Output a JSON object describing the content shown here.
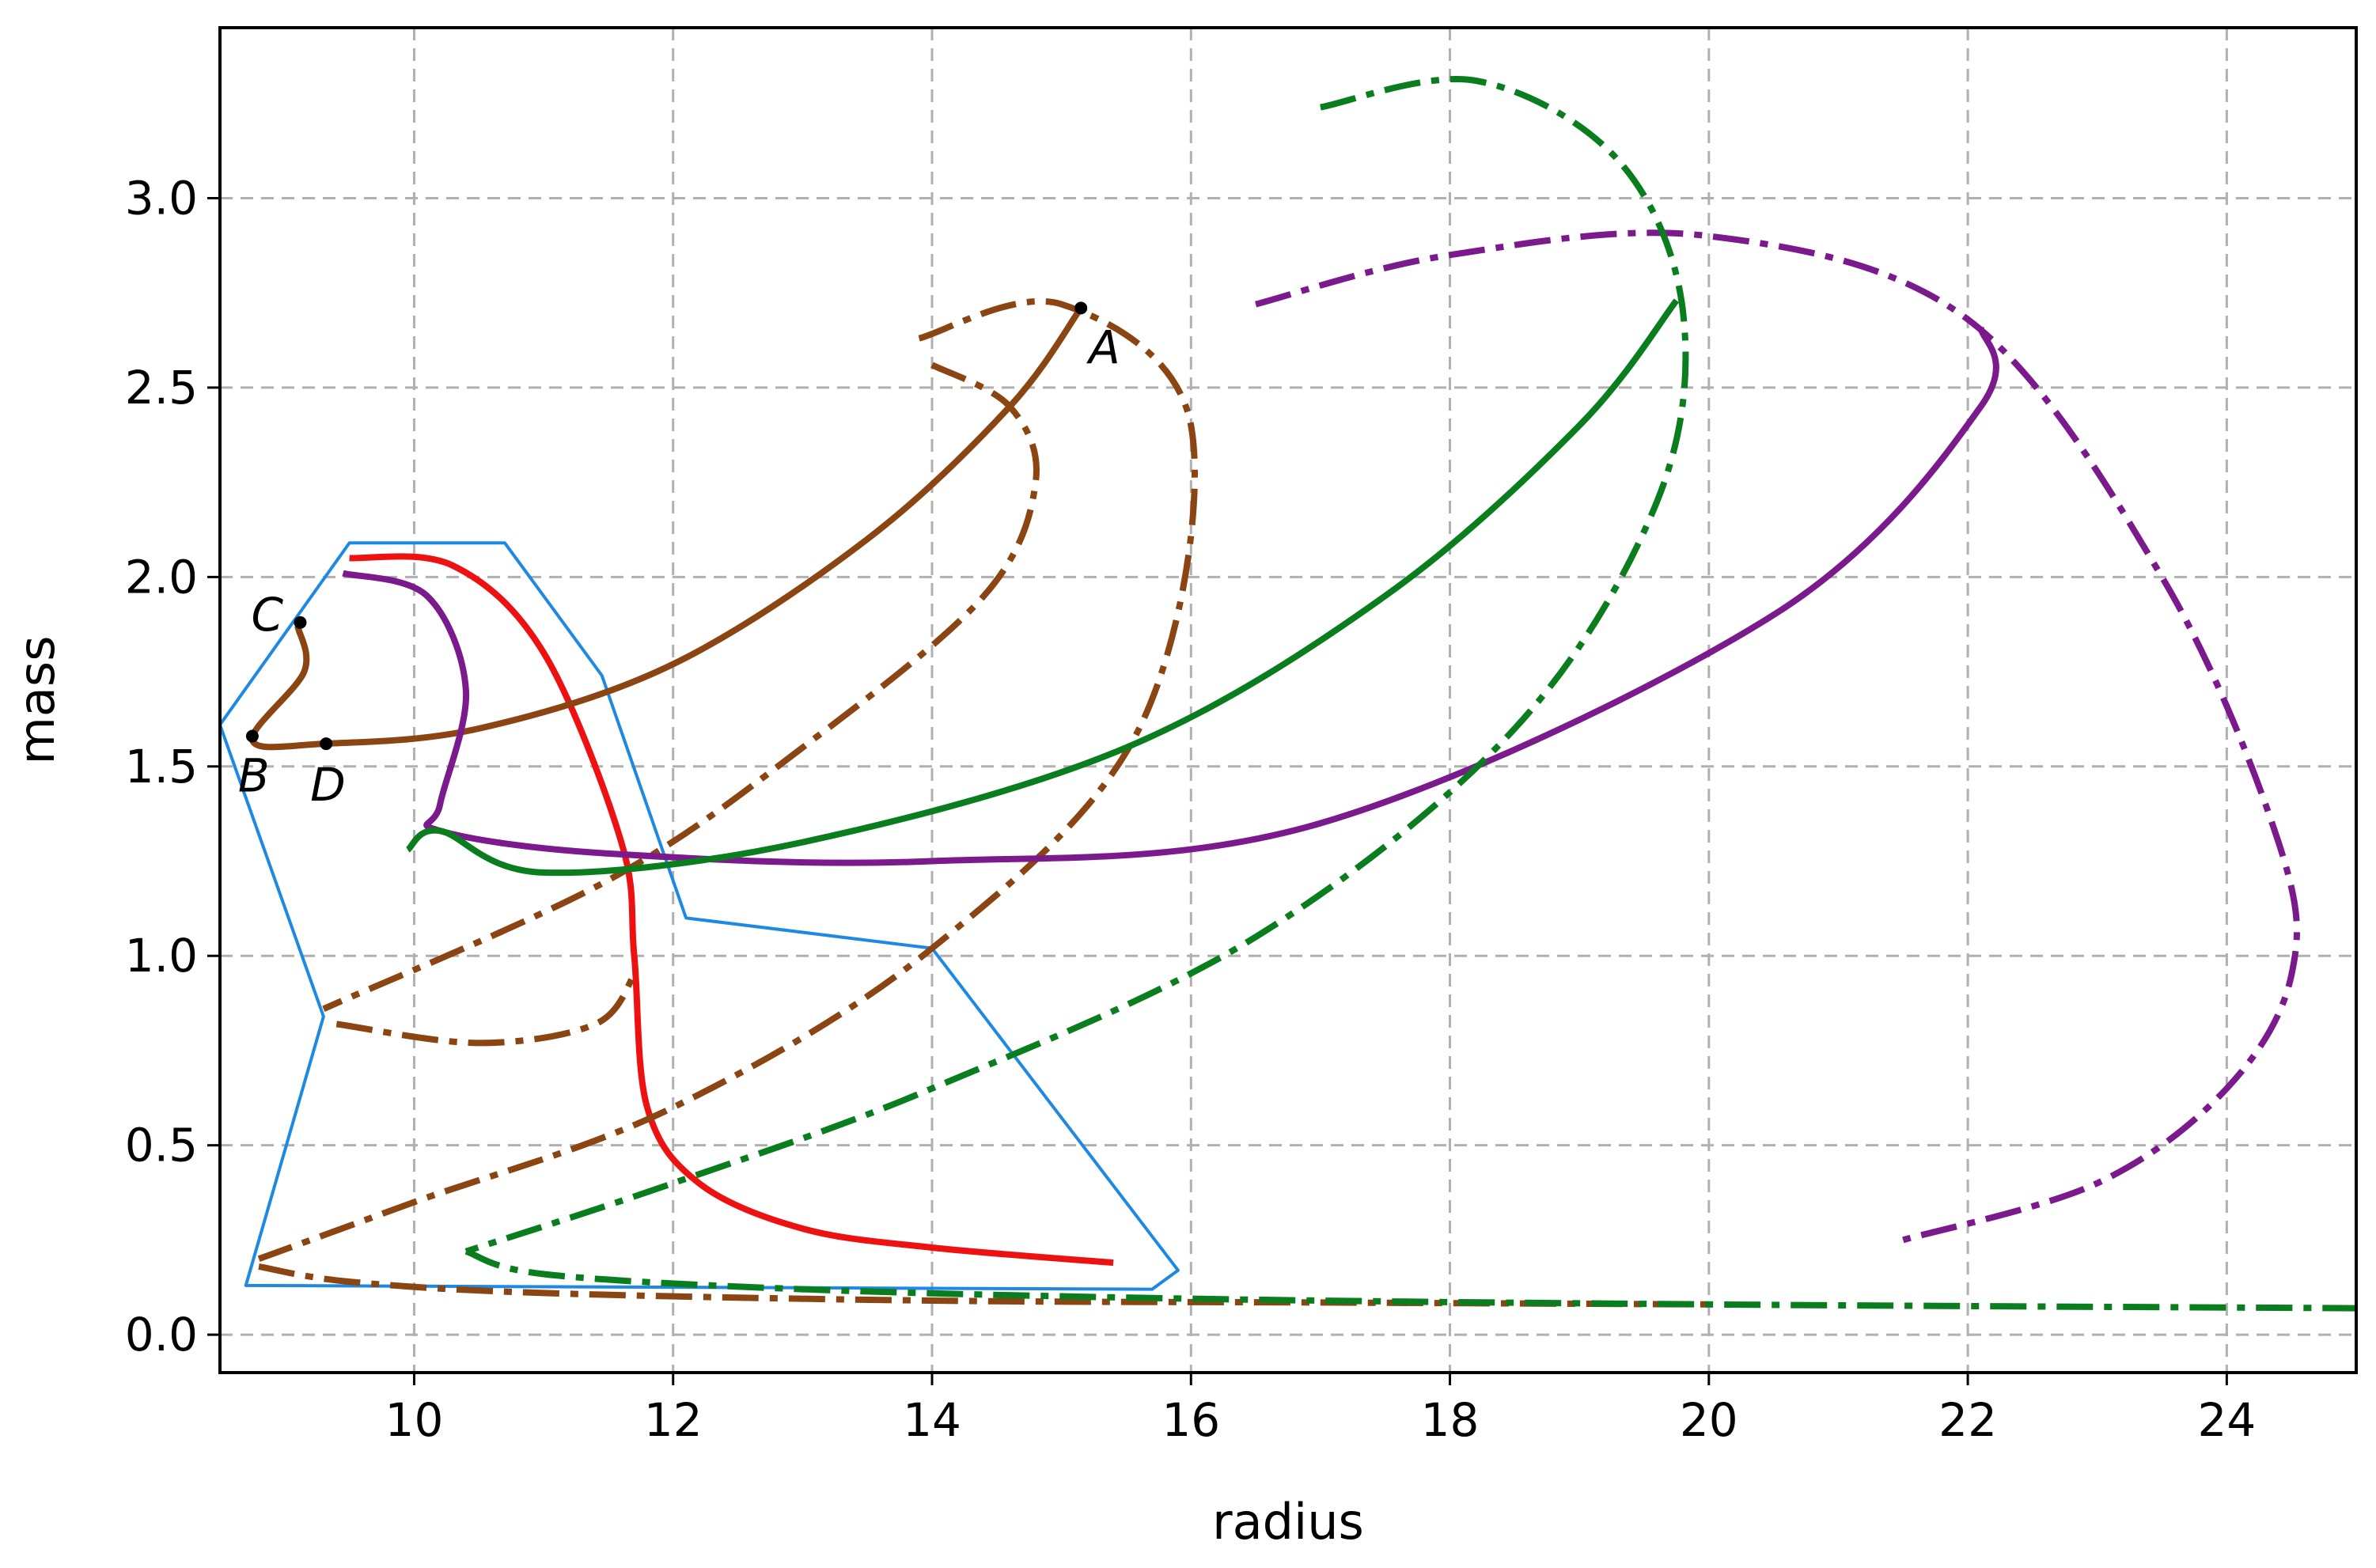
{
  "chart_data": {
    "type": "line",
    "title": "",
    "xlabel": "radius",
    "ylabel": "mass",
    "xlim": [
      8.5,
      25.0
    ],
    "ylim": [
      -0.1,
      3.45
    ],
    "xticks": [
      10,
      12,
      14,
      16,
      18,
      20,
      22,
      24
    ],
    "yticks": [
      0.0,
      0.5,
      1.0,
      1.5,
      2.0,
      2.5,
      3.0
    ],
    "xtick_labels": [
      "10",
      "12",
      "14",
      "16",
      "18",
      "20",
      "22",
      "24"
    ],
    "ytick_labels": [
      "0.0",
      "0.5",
      "1.0",
      "1.5",
      "2.0",
      "2.5",
      "3.0"
    ],
    "grid": true,
    "legend": "none",
    "series": [
      {
        "color": "#1e88e5",
        "style": "solid",
        "closed": true,
        "x": [
          9.5,
          10.7,
          11.45,
          12.1,
          14.0,
          15.9,
          15.7,
          8.7,
          9.3,
          8.5
        ],
        "y": [
          2.09,
          2.09,
          1.74,
          1.1,
          1.02,
          0.17,
          0.12,
          0.13,
          0.84,
          1.61
        ]
      },
      {
        "color": "#ee1111",
        "style": "solid",
        "x": [
          9.5,
          10.3,
          11.0,
          11.6,
          11.7,
          11.8,
          12.2,
          13.0,
          14.0,
          15.4
        ],
        "y": [
          2.05,
          2.03,
          1.8,
          1.3,
          1.0,
          0.6,
          0.4,
          0.28,
          0.23,
          0.19
        ]
      },
      {
        "color": "#8b4513",
        "style": "solid",
        "x": [
          9.1,
          9.15,
          8.75,
          9.3,
          10.5,
          12.0,
          13.5,
          14.6,
          15.15
        ],
        "y": [
          1.87,
          1.75,
          1.57,
          1.56,
          1.6,
          1.77,
          2.1,
          2.45,
          2.71
        ]
      },
      {
        "color": "#8b4513",
        "style": "dashdot",
        "x": [
          14.0,
          14.6,
          14.8,
          14.4,
          13.0,
          11.5,
          9.3
        ],
        "y": [
          2.56,
          2.45,
          2.25,
          1.95,
          1.55,
          1.2,
          0.86
        ]
      },
      {
        "color": "#8b4513",
        "style": "dashdot",
        "x": [
          13.9,
          15.0,
          16.0,
          15.6,
          14.0,
          12.0,
          10.0,
          8.8
        ],
        "y": [
          2.63,
          2.72,
          2.4,
          1.6,
          1.02,
          0.6,
          0.35,
          0.2
        ]
      },
      {
        "color": "#8b4513",
        "style": "dashdot",
        "x": [
          9.4,
          10.5,
          11.4,
          11.7
        ],
        "y": [
          0.82,
          0.77,
          0.82,
          0.95
        ]
      },
      {
        "color": "#8b4513",
        "style": "dashdot",
        "x": [
          8.8,
          9.5,
          11.0,
          14.0,
          17.0,
          20.0
        ],
        "y": [
          0.18,
          0.14,
          0.11,
          0.09,
          0.085,
          0.08
        ]
      },
      {
        "color": "#7b1a8c",
        "style": "solid",
        "x": [
          9.45,
          10.1,
          10.4,
          10.2,
          10.2,
          11.5,
          14.0,
          17.0,
          20.5,
          22.1,
          22.1
        ],
        "y": [
          2.01,
          1.95,
          1.7,
          1.4,
          1.33,
          1.27,
          1.25,
          1.35,
          1.9,
          2.45,
          2.66
        ]
      },
      {
        "color": "#7b1a8c",
        "style": "dashdot",
        "x": [
          16.5,
          18.0,
          20.0,
          22.0,
          23.5,
          24.4,
          24.5,
          24.0,
          23.0,
          21.5
        ],
        "y": [
          2.72,
          2.85,
          2.9,
          2.68,
          2.0,
          1.3,
          0.95,
          0.65,
          0.4,
          0.25
        ]
      },
      {
        "color": "#0a7e1e",
        "style": "solid",
        "x": [
          9.95,
          10.2,
          11.0,
          13.0,
          15.5,
          17.5,
          19.0,
          19.75
        ],
        "y": [
          1.28,
          1.33,
          1.22,
          1.3,
          1.55,
          1.95,
          2.4,
          2.73
        ]
      },
      {
        "color": "#0a7e1e",
        "style": "dashdot",
        "x": [
          17.0,
          18.2,
          19.3,
          19.8,
          19.6,
          18.5,
          16.5,
          14.0,
          12.0,
          10.4
        ],
        "y": [
          3.24,
          3.31,
          3.1,
          2.7,
          2.2,
          1.6,
          1.05,
          0.65,
          0.4,
          0.22
        ]
      },
      {
        "color": "#0a7e1e",
        "style": "dashdot",
        "x": [
          10.4,
          11.0,
          13.0,
          16.0,
          20.0,
          25.0
        ],
        "y": [
          0.22,
          0.16,
          0.12,
          0.095,
          0.08,
          0.07
        ]
      }
    ],
    "points": [
      {
        "label": "A",
        "x": 15.15,
        "y": 2.71
      },
      {
        "label": "B",
        "x": 8.75,
        "y": 1.58
      },
      {
        "label": "C",
        "x": 9.12,
        "y": 1.88
      },
      {
        "label": "D",
        "x": 9.32,
        "y": 1.56
      }
    ]
  }
}
